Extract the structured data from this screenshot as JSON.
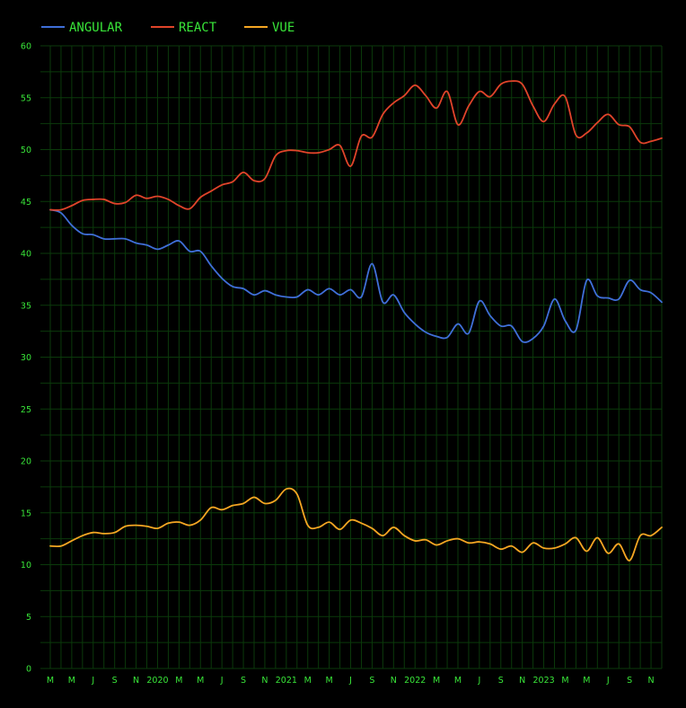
{
  "chart_data": {
    "type": "line",
    "title": "",
    "xlabel": "",
    "ylabel": "",
    "ylim": [
      0,
      60
    ],
    "y_ticks": [
      0,
      5,
      10,
      15,
      20,
      25,
      30,
      35,
      40,
      45,
      50,
      55,
      60
    ],
    "grid": true,
    "legend_position": "top-left",
    "x_start": "2019-02",
    "x_end": "2023-11",
    "x_tick_labels": [
      "M",
      "M",
      "J",
      "S",
      "N",
      "2020",
      "M",
      "M",
      "J",
      "S",
      "N",
      "2021",
      "M",
      "M",
      "J",
      "S",
      "N",
      "2022",
      "M",
      "M",
      "J",
      "S",
      "N",
      "2023",
      "M",
      "M",
      "J",
      "S",
      "N"
    ],
    "colors": {
      "background": "#000000",
      "grid": "#0b3a0b",
      "text": "#39e639",
      "angular": "#3f6fd8",
      "react": "#e0442a",
      "vue": "#f5a623"
    },
    "series": [
      {
        "name": "ANGULAR",
        "color": "#3f6fd8",
        "points": [
          [
            "2019-02",
            44.2
          ],
          [
            "2019-03",
            43.9
          ],
          [
            "2019-04",
            42.7
          ],
          [
            "2019-05",
            41.9
          ],
          [
            "2019-06",
            41.8
          ],
          [
            "2019-07",
            41.4
          ],
          [
            "2019-08",
            41.4
          ],
          [
            "2019-09",
            41.4
          ],
          [
            "2019-10",
            41.0
          ],
          [
            "2019-11",
            40.8
          ],
          [
            "2019-12",
            40.4
          ],
          [
            "2020-01",
            40.8
          ],
          [
            "2020-02",
            41.2
          ],
          [
            "2020-03",
            40.2
          ],
          [
            "2020-04",
            40.2
          ],
          [
            "2020-05",
            38.8
          ],
          [
            "2020-06",
            37.6
          ],
          [
            "2020-07",
            36.8
          ],
          [
            "2020-08",
            36.6
          ],
          [
            "2020-09",
            36.0
          ],
          [
            "2020-10",
            36.4
          ],
          [
            "2020-11",
            36.0
          ],
          [
            "2020-12",
            35.8
          ],
          [
            "2021-01",
            35.8
          ],
          [
            "2021-02",
            36.5
          ],
          [
            "2021-03",
            36.0
          ],
          [
            "2021-04",
            36.6
          ],
          [
            "2021-05",
            36.0
          ],
          [
            "2021-06",
            36.5
          ],
          [
            "2021-07",
            35.8
          ],
          [
            "2021-08",
            39.0
          ],
          [
            "2021-09",
            35.3
          ],
          [
            "2021-10",
            36.0
          ],
          [
            "2021-11",
            34.3
          ],
          [
            "2021-12",
            33.2
          ],
          [
            "2022-01",
            32.4
          ],
          [
            "2022-02",
            32.0
          ],
          [
            "2022-03",
            31.9
          ],
          [
            "2022-04",
            33.2
          ],
          [
            "2022-05",
            32.3
          ],
          [
            "2022-06",
            35.4
          ],
          [
            "2022-07",
            34.0
          ],
          [
            "2022-08",
            33.0
          ],
          [
            "2022-09",
            33.0
          ],
          [
            "2022-10",
            31.5
          ],
          [
            "2022-11",
            31.8
          ],
          [
            "2022-12",
            33.0
          ],
          [
            "2023-01",
            35.6
          ],
          [
            "2023-02",
            33.5
          ],
          [
            "2023-03",
            32.6
          ],
          [
            "2023-04",
            37.4
          ],
          [
            "2023-05",
            35.9
          ],
          [
            "2023-06",
            35.7
          ],
          [
            "2023-07",
            35.6
          ],
          [
            "2023-08",
            37.4
          ],
          [
            "2023-09",
            36.5
          ],
          [
            "2023-10",
            36.2
          ],
          [
            "2023-11",
            35.3
          ]
        ]
      },
      {
        "name": "REACT",
        "color": "#e0442a",
        "points": [
          [
            "2019-02",
            44.2
          ],
          [
            "2019-03",
            44.2
          ],
          [
            "2019-04",
            44.6
          ],
          [
            "2019-05",
            45.1
          ],
          [
            "2019-06",
            45.2
          ],
          [
            "2019-07",
            45.2
          ],
          [
            "2019-08",
            44.8
          ],
          [
            "2019-09",
            44.9
          ],
          [
            "2019-10",
            45.6
          ],
          [
            "2019-11",
            45.3
          ],
          [
            "2019-12",
            45.5
          ],
          [
            "2020-01",
            45.2
          ],
          [
            "2020-02",
            44.6
          ],
          [
            "2020-03",
            44.3
          ],
          [
            "2020-04",
            45.4
          ],
          [
            "2020-05",
            46.0
          ],
          [
            "2020-06",
            46.6
          ],
          [
            "2020-07",
            46.9
          ],
          [
            "2020-08",
            47.8
          ],
          [
            "2020-09",
            47.0
          ],
          [
            "2020-10",
            47.2
          ],
          [
            "2020-11",
            49.4
          ],
          [
            "2020-12",
            49.9
          ],
          [
            "2021-01",
            49.9
          ],
          [
            "2021-02",
            49.7
          ],
          [
            "2021-03",
            49.7
          ],
          [
            "2021-04",
            50.0
          ],
          [
            "2021-05",
            50.4
          ],
          [
            "2021-06",
            48.4
          ],
          [
            "2021-07",
            51.3
          ],
          [
            "2021-08",
            51.2
          ],
          [
            "2021-09",
            53.4
          ],
          [
            "2021-10",
            54.5
          ],
          [
            "2021-11",
            55.2
          ],
          [
            "2021-12",
            56.2
          ],
          [
            "2022-01",
            55.2
          ],
          [
            "2022-02",
            54.0
          ],
          [
            "2022-03",
            55.6
          ],
          [
            "2022-04",
            52.4
          ],
          [
            "2022-05",
            54.2
          ],
          [
            "2022-06",
            55.6
          ],
          [
            "2022-07",
            55.1
          ],
          [
            "2022-08",
            56.3
          ],
          [
            "2022-09",
            56.6
          ],
          [
            "2022-10",
            56.3
          ],
          [
            "2022-11",
            54.2
          ],
          [
            "2022-12",
            52.7
          ],
          [
            "2023-01",
            54.4
          ],
          [
            "2023-02",
            55.1
          ],
          [
            "2023-03",
            51.4
          ],
          [
            "2023-04",
            51.6
          ],
          [
            "2023-05",
            52.6
          ],
          [
            "2023-06",
            53.4
          ],
          [
            "2023-07",
            52.4
          ],
          [
            "2023-08",
            52.2
          ],
          [
            "2023-09",
            50.7
          ],
          [
            "2023-10",
            50.8
          ],
          [
            "2023-11",
            51.1
          ]
        ]
      },
      {
        "name": "VUE",
        "color": "#f5a623",
        "points": [
          [
            "2019-02",
            11.8
          ],
          [
            "2019-03",
            11.8
          ],
          [
            "2019-04",
            12.3
          ],
          [
            "2019-05",
            12.8
          ],
          [
            "2019-06",
            13.1
          ],
          [
            "2019-07",
            13.0
          ],
          [
            "2019-08",
            13.1
          ],
          [
            "2019-09",
            13.7
          ],
          [
            "2019-10",
            13.8
          ],
          [
            "2019-11",
            13.7
          ],
          [
            "2019-12",
            13.5
          ],
          [
            "2020-01",
            14.0
          ],
          [
            "2020-02",
            14.1
          ],
          [
            "2020-03",
            13.8
          ],
          [
            "2020-04",
            14.3
          ],
          [
            "2020-05",
            15.5
          ],
          [
            "2020-06",
            15.3
          ],
          [
            "2020-07",
            15.7
          ],
          [
            "2020-08",
            15.9
          ],
          [
            "2020-09",
            16.5
          ],
          [
            "2020-10",
            15.9
          ],
          [
            "2020-11",
            16.2
          ],
          [
            "2020-12",
            17.3
          ],
          [
            "2021-01",
            16.8
          ],
          [
            "2021-02",
            13.8
          ],
          [
            "2021-03",
            13.6
          ],
          [
            "2021-04",
            14.1
          ],
          [
            "2021-05",
            13.4
          ],
          [
            "2021-06",
            14.3
          ],
          [
            "2021-07",
            14.0
          ],
          [
            "2021-08",
            13.5
          ],
          [
            "2021-09",
            12.8
          ],
          [
            "2021-10",
            13.6
          ],
          [
            "2021-11",
            12.8
          ],
          [
            "2021-12",
            12.3
          ],
          [
            "2022-01",
            12.4
          ],
          [
            "2022-02",
            11.9
          ],
          [
            "2022-03",
            12.3
          ],
          [
            "2022-04",
            12.5
          ],
          [
            "2022-05",
            12.1
          ],
          [
            "2022-06",
            12.2
          ],
          [
            "2022-07",
            12.0
          ],
          [
            "2022-08",
            11.5
          ],
          [
            "2022-09",
            11.8
          ],
          [
            "2022-10",
            11.2
          ],
          [
            "2022-11",
            12.1
          ],
          [
            "2022-12",
            11.6
          ],
          [
            "2023-01",
            11.6
          ],
          [
            "2023-02",
            12.0
          ],
          [
            "2023-03",
            12.6
          ],
          [
            "2023-04",
            11.3
          ],
          [
            "2023-05",
            12.6
          ],
          [
            "2023-06",
            11.1
          ],
          [
            "2023-07",
            12.0
          ],
          [
            "2023-08",
            10.4
          ],
          [
            "2023-09",
            12.8
          ],
          [
            "2023-10",
            12.8
          ],
          [
            "2023-11",
            13.6
          ]
        ]
      }
    ]
  }
}
